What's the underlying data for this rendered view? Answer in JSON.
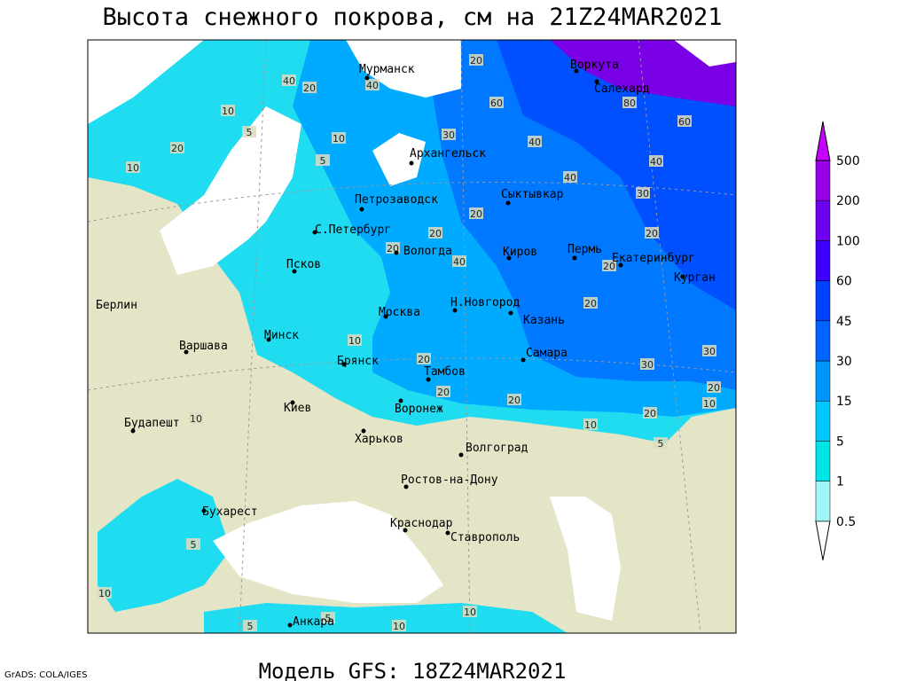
{
  "title": "Высота снежного покрова, см на 21Z24MAR2021",
  "footer": "Модель GFS: 18Z24MAR2021",
  "credit": "GrADS: COLA/IGES",
  "cities": [
    "Мурманск",
    "Воркута",
    "Салехард",
    "Архангельск",
    "Петрозаводск",
    "Сыктывкар",
    "С.Петербург",
    "Вологда",
    "Киров",
    "Пермь",
    "Екатеринбург",
    "Курган",
    "Псков",
    "Берлин",
    "Н.Новгород",
    "Москва",
    "Казань",
    "Минск",
    "Варшава",
    "Самара",
    "Брянск",
    "Тамбов",
    "Киев",
    "Воронеж",
    "Будапешт",
    "Харьков",
    "Волгоград",
    "Ростов-на-Дону",
    "Бухарест",
    "Краснодар",
    "Ставрополь",
    "Анкара"
  ],
  "contour_labels": [
    20,
    40,
    20,
    40,
    10,
    5,
    10,
    20,
    10,
    5,
    30,
    40,
    60,
    80,
    60,
    40,
    40,
    30,
    20,
    20,
    20,
    20,
    40,
    20,
    20,
    10,
    20,
    20,
    20,
    30,
    30,
    20,
    10,
    20,
    10,
    5,
    10,
    5,
    10,
    5,
    10,
    10,
    5
  ],
  "colorbar": {
    "levels": [
      0.5,
      1,
      5,
      15,
      30,
      45,
      60,
      100,
      200,
      500
    ],
    "colors": [
      "#ffffff",
      "#a0f5f5",
      "#00e6e6",
      "#00c8ff",
      "#0096ff",
      "#0064ff",
      "#0040ff",
      "#3c00ff",
      "#6e00f0",
      "#9600e6",
      "#c800ff"
    ]
  }
}
